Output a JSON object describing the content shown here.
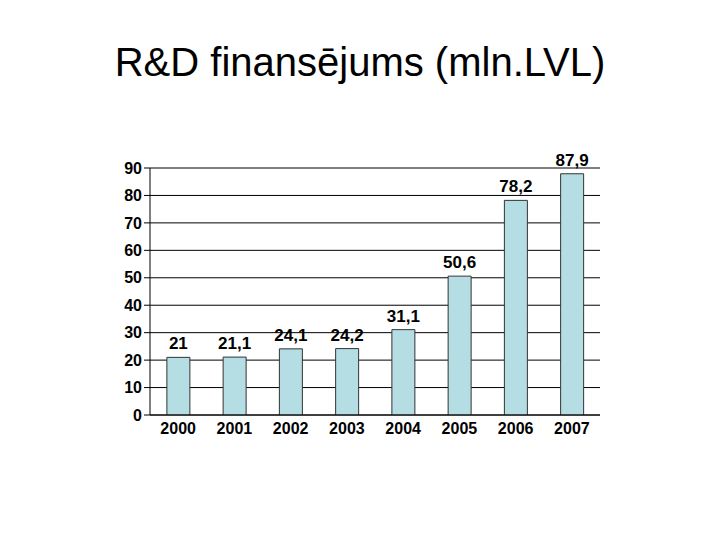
{
  "chart_data": {
    "type": "bar",
    "title": "R&D finansējums (mln.LVL)",
    "categories": [
      "2000",
      "2001",
      "2002",
      "2003",
      "2004",
      "2005",
      "2006",
      "2007"
    ],
    "values": [
      21,
      21.1,
      24.1,
      24.2,
      31.1,
      50.6,
      78.2,
      87.9
    ],
    "value_labels": [
      "21",
      "21,1",
      "24,1",
      "24,2",
      "31,1",
      "50,6",
      "78,2",
      "87,9"
    ],
    "color": "#b4dde4",
    "ylim": [
      0,
      90
    ],
    "yticks": [
      0,
      10,
      20,
      30,
      40,
      50,
      60,
      70,
      80,
      90
    ],
    "grid": true,
    "data_labels": true
  }
}
